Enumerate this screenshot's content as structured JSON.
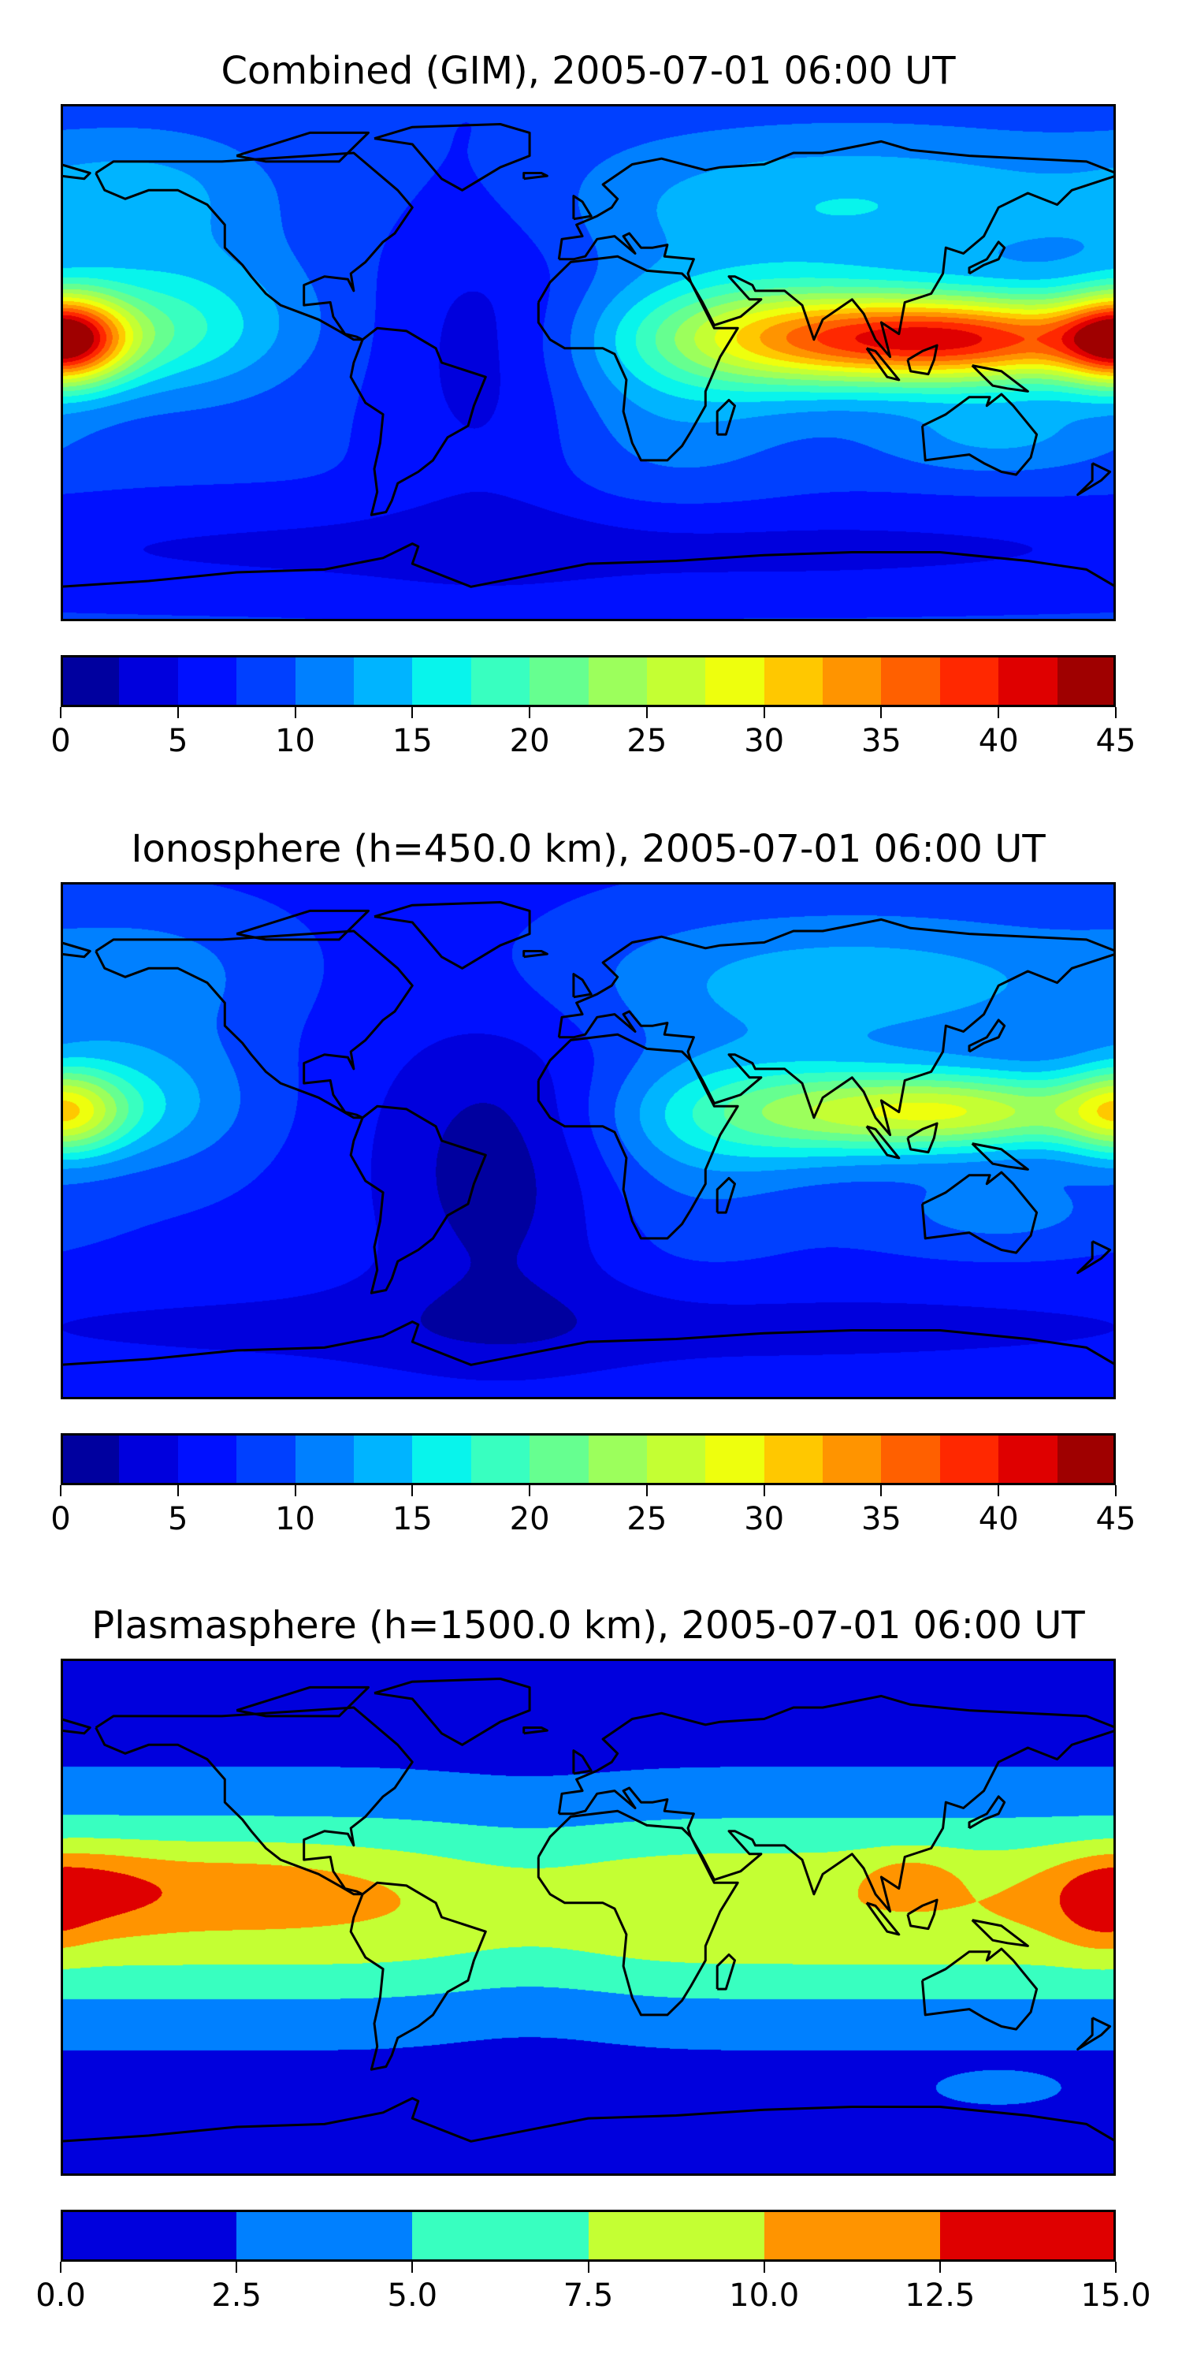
{
  "chart_data": [
    {
      "type": "heatmap",
      "title": "Combined (GIM), 2005-07-01 06:00 UT",
      "xlim": [
        -180,
        180
      ],
      "ylim": [
        -90,
        90
      ],
      "colorbar": {
        "levels": [
          0,
          2.5,
          5,
          7.5,
          10,
          12.5,
          15,
          17.5,
          20,
          22.5,
          25,
          27.5,
          30,
          32.5,
          35,
          37.5,
          40,
          42.5,
          45
        ],
        "ticks": [
          0,
          5,
          10,
          15,
          20,
          25,
          30,
          35,
          40,
          45
        ],
        "tick_labels": [
          "0",
          "5",
          "10",
          "15",
          "20",
          "25",
          "30",
          "35",
          "40",
          "45"
        ],
        "colors": [
          "#00009f",
          "#0000dd",
          "#0010ff",
          "#0040ff",
          "#0080ff",
          "#00b4ff",
          "#08f4ec",
          "#38ffc0",
          "#66ff90",
          "#9cff5c",
          "#c4ff33",
          "#eeff0d",
          "#ffc800",
          "#ff9400",
          "#ff6000",
          "#ff2800",
          "#df0000",
          "#9f0000"
        ]
      }
    },
    {
      "type": "heatmap",
      "title": "Ionosphere  (h=450.0 km), 2005-07-01 06:00 UT",
      "xlim": [
        -180,
        180
      ],
      "ylim": [
        -90,
        90
      ],
      "colorbar": {
        "levels": [
          0,
          2.5,
          5,
          7.5,
          10,
          12.5,
          15,
          17.5,
          20,
          22.5,
          25,
          27.5,
          30,
          32.5,
          35,
          37.5,
          40,
          42.5,
          45
        ],
        "ticks": [
          0,
          5,
          10,
          15,
          20,
          25,
          30,
          35,
          40,
          45
        ],
        "tick_labels": [
          "0",
          "5",
          "10",
          "15",
          "20",
          "25",
          "30",
          "35",
          "40",
          "45"
        ],
        "colors": [
          "#00009f",
          "#0000dd",
          "#0010ff",
          "#0040ff",
          "#0080ff",
          "#00b4ff",
          "#08f4ec",
          "#38ffc0",
          "#66ff90",
          "#9cff5c",
          "#c4ff33",
          "#eeff0d",
          "#ffc800",
          "#ff9400",
          "#ff6000",
          "#ff2800",
          "#df0000",
          "#9f0000"
        ]
      }
    },
    {
      "type": "heatmap",
      "title": "Plasmasphere (h=1500.0 km), 2005-07-01 06:00 UT",
      "xlim": [
        -180,
        180
      ],
      "ylim": [
        -90,
        90
      ],
      "colorbar": {
        "levels": [
          0,
          2.5,
          5,
          7.5,
          10,
          12.5,
          15
        ],
        "ticks": [
          0,
          2.5,
          5,
          7.5,
          10,
          12.5,
          15
        ],
        "tick_labels": [
          "0.0",
          "2.5",
          "5.0",
          "7.5",
          "10.0",
          "12.5",
          "15.0"
        ],
        "colors": [
          "#0000dd",
          "#0080ff",
          "#38ffc0",
          "#c4ff33",
          "#ff9400",
          "#df0000"
        ]
      }
    }
  ]
}
